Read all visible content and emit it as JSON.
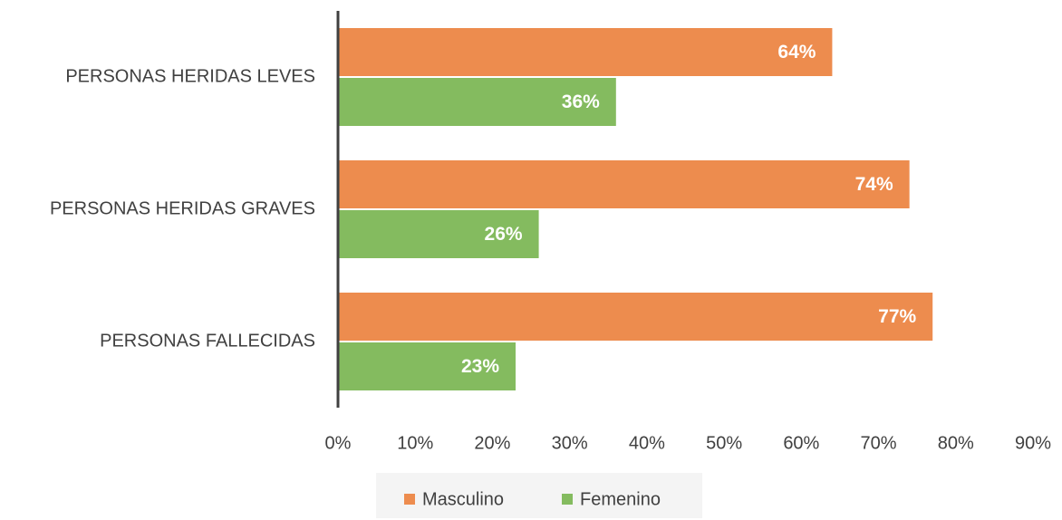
{
  "chart_data": {
    "type": "bar",
    "orientation": "horizontal",
    "categories": [
      "PERSONAS HERIDAS LEVES",
      "PERSONAS HERIDAS GRAVES",
      "PERSONAS FALLECIDAS"
    ],
    "series": [
      {
        "name": "Masculino",
        "color": "#ed8c4e",
        "values": [
          64,
          74,
          77
        ],
        "value_labels": [
          "64%",
          "74%",
          "77%"
        ]
      },
      {
        "name": "Femenino",
        "color": "#84bb5f",
        "values": [
          36,
          26,
          23
        ],
        "value_labels": [
          "36%",
          "26%",
          "23%"
        ]
      }
    ],
    "xlim": [
      0,
      90
    ],
    "xticks": [
      {
        "value": 0,
        "label": "0%"
      },
      {
        "value": 10,
        "label": "10%"
      },
      {
        "value": 20,
        "label": "20%"
      },
      {
        "value": 30,
        "label": "30%"
      },
      {
        "value": 40,
        "label": "40%"
      },
      {
        "value": 50,
        "label": "50%"
      },
      {
        "value": 60,
        "label": "60%"
      },
      {
        "value": 70,
        "label": "70%"
      },
      {
        "value": 80,
        "label": "80%"
      },
      {
        "value": 90,
        "label": "90%"
      }
    ],
    "grid": false,
    "legend": "bottom"
  }
}
